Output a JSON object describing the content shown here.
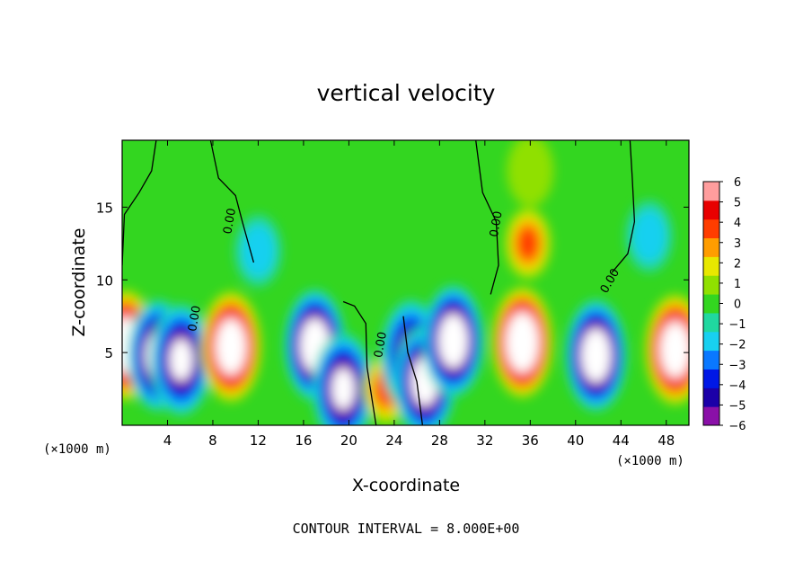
{
  "chart_data": {
    "type": "heatmap",
    "title": "vertical velocity",
    "xlabel": "X-coordinate",
    "ylabel": "Z-coordinate",
    "x_unit_left": "(×1000 m)",
    "x_unit_right": "(×1000 m)",
    "xlim": [
      0,
      50
    ],
    "ylim": [
      0,
      19.6
    ],
    "x_ticks": [
      4,
      8,
      12,
      16,
      20,
      24,
      28,
      32,
      36,
      40,
      44,
      48
    ],
    "y_ticks": [
      5,
      10,
      15
    ],
    "colorbar": {
      "range": [
        -6,
        6
      ],
      "ticks": [
        6,
        5,
        4,
        3,
        2,
        1,
        0,
        -1,
        -2,
        -3,
        -4,
        -5,
        -6
      ],
      "tick_labels": [
        "6",
        "5",
        "4",
        "3",
        "2",
        "1",
        "0",
        "−1",
        "−2",
        "−3",
        "−4",
        "−5",
        "−6"
      ]
    },
    "contour_label": "0.00",
    "footer": "CONTOUR INTERVAL = 8.000E+00",
    "features": [
      {
        "x": 0.3,
        "z": 5.5,
        "w": 10
      },
      {
        "x": 3.2,
        "z": 4.8,
        "w": -9
      },
      {
        "x": 5.2,
        "z": 4.5,
        "w": -8
      },
      {
        "x": 9.6,
        "z": 5.4,
        "w": 10
      },
      {
        "x": 17.0,
        "z": 5.5,
        "w": -10
      },
      {
        "x": 19.5,
        "z": 2.5,
        "w": -8
      },
      {
        "x": 23.3,
        "z": 2.5,
        "w": 4
      },
      {
        "x": 25.5,
        "z": 4.8,
        "w": -7
      },
      {
        "x": 26.7,
        "z": 3.0,
        "w": -9
      },
      {
        "x": 29.2,
        "z": 5.8,
        "w": -10
      },
      {
        "x": 35.3,
        "z": 5.7,
        "w": 11
      },
      {
        "x": 35.8,
        "z": 12.5,
        "w": 4
      },
      {
        "x": 41.8,
        "z": 4.8,
        "w": -10
      },
      {
        "x": 48.8,
        "z": 5.2,
        "w": 10
      },
      {
        "x": 12.0,
        "z": 12.0,
        "w": -2
      },
      {
        "x": 46.5,
        "z": 13.0,
        "w": -2
      },
      {
        "x": 36.0,
        "z": 17.5,
        "w": 1
      }
    ]
  }
}
